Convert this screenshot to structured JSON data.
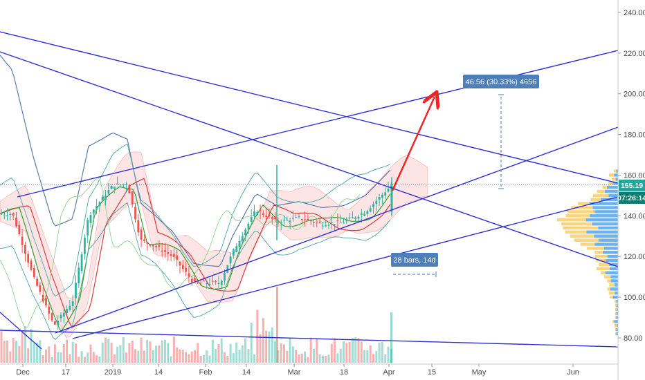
{
  "chart_data": {
    "type": "candlestick",
    "y_axis": {
      "ticks": [
        80,
        100,
        120,
        140,
        160,
        180,
        200,
        220,
        240
      ],
      "tick_labels": [
        "80.00",
        "100.00",
        "120.00",
        "140.00",
        "160.00",
        "180.00",
        "200.00",
        "220.00",
        "240.00"
      ],
      "range": [
        73,
        245
      ],
      "position": "right"
    },
    "x_axis": {
      "tick_labels": [
        "Dec",
        "17",
        "2019",
        "14",
        "Feb",
        "14",
        "Mar",
        "18",
        "Apr",
        "15",
        "May",
        "Jun"
      ]
    },
    "last_price": "155.19",
    "countdown": "07:26:14",
    "annotations": {
      "price_range": "46.56 (30.33%) 4656",
      "date_range": "28 bars, 14d"
    },
    "price_series_approx": [
      {
        "t": "Dec 01",
        "close": 141
      },
      {
        "t": "Dec 08",
        "close": 110
      },
      {
        "t": "Dec 15",
        "close": 86
      },
      {
        "t": "Dec 22",
        "close": 98
      },
      {
        "t": "Dec 27",
        "close": 140
      },
      {
        "t": "Jan 01",
        "close": 155
      },
      {
        "t": "Jan 06",
        "close": 156
      },
      {
        "t": "Jan 10",
        "close": 128
      },
      {
        "t": "Jan 15",
        "close": 125
      },
      {
        "t": "Jan 21",
        "close": 120
      },
      {
        "t": "Jan 28",
        "close": 107
      },
      {
        "t": "Feb 06",
        "close": 107
      },
      {
        "t": "Feb 10",
        "close": 122
      },
      {
        "t": "Feb 17",
        "close": 143
      },
      {
        "t": "Feb 24",
        "close": 137
      },
      {
        "t": "Mar 04",
        "close": 139
      },
      {
        "t": "Mar 11",
        "close": 136
      },
      {
        "t": "Mar 18",
        "close": 137
      },
      {
        "t": "Mar 25",
        "close": 142
      },
      {
        "t": "Apr 02",
        "close": 155.19
      }
    ]
  },
  "colors": {
    "trendline": "#2f2fd6",
    "arrow": "#f12323",
    "axis_text": "#4a4a4a",
    "bull": "#2eb3a0",
    "bear": "#ef5350",
    "label_bg": "#4f7fb8",
    "price_label": "#26a69a",
    "countdown_label": "#0f7d72",
    "volume_profile_up": "#1e88e5",
    "volume_profile_down": "#f9c74f"
  }
}
